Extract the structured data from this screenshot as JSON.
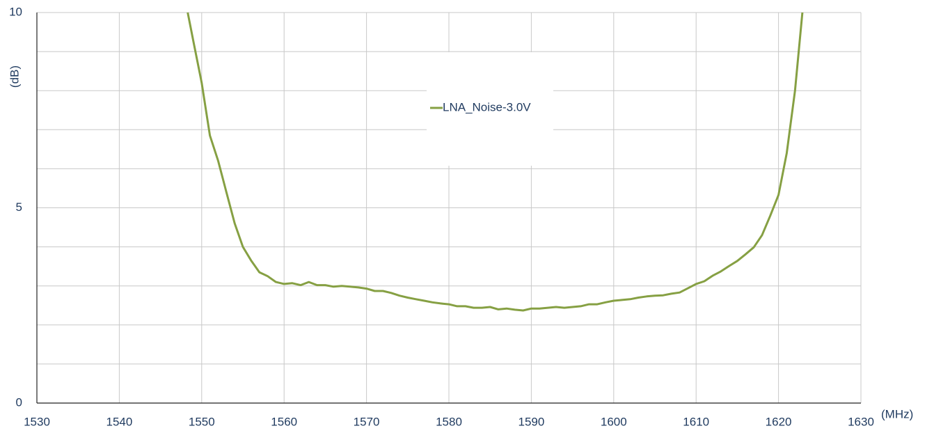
{
  "chart_data": {
    "type": "line",
    "x_label": "(MHz)",
    "y_label": "(dB)",
    "xlim": [
      1530,
      1630
    ],
    "xticks": [
      1530,
      1540,
      1550,
      1560,
      1570,
      1580,
      1590,
      1600,
      1610,
      1620,
      1630
    ],
    "ylim": [
      0,
      10
    ],
    "yticks": [
      0,
      5,
      10
    ],
    "ygrid": [
      0,
      1,
      2,
      3,
      4,
      5,
      6,
      7,
      8,
      9,
      10
    ],
    "grid": true,
    "legend": "top center",
    "x": [
      1548.3,
      1549,
      1550,
      1551,
      1552,
      1553,
      1554,
      1555,
      1556,
      1557,
      1558,
      1559,
      1560,
      1561,
      1562,
      1563,
      1564,
      1565,
      1566,
      1567,
      1568,
      1569,
      1570,
      1571,
      1572,
      1573,
      1574,
      1575,
      1576,
      1577,
      1578,
      1579,
      1580,
      1581,
      1582,
      1583,
      1584,
      1585,
      1586,
      1587,
      1588,
      1589,
      1590,
      1591,
      1592,
      1593,
      1594,
      1595,
      1596,
      1597,
      1598,
      1599,
      1600,
      1601,
      1602,
      1603,
      1604,
      1605,
      1606,
      1607,
      1608,
      1609,
      1610,
      1611,
      1612,
      1613,
      1614,
      1615,
      1616,
      1617,
      1618,
      1619,
      1620,
      1621,
      1622,
      1622.9
    ],
    "series": [
      {
        "name": "LNA_Noise-3.0V",
        "color": "#86a043",
        "values": [
          10,
          9.25,
          8.2,
          6.85,
          6.2,
          5.4,
          4.6,
          4.0,
          3.65,
          3.35,
          3.25,
          3.1,
          3.05,
          3.07,
          3.02,
          3.1,
          3.02,
          3.02,
          2.98,
          3.0,
          2.98,
          2.96,
          2.93,
          2.87,
          2.87,
          2.82,
          2.75,
          2.7,
          2.66,
          2.62,
          2.58,
          2.55,
          2.53,
          2.48,
          2.48,
          2.44,
          2.44,
          2.46,
          2.4,
          2.42,
          2.39,
          2.37,
          2.42,
          2.42,
          2.44,
          2.46,
          2.44,
          2.46,
          2.48,
          2.53,
          2.53,
          2.58,
          2.62,
          2.64,
          2.66,
          2.7,
          2.73,
          2.75,
          2.76,
          2.8,
          2.83,
          2.94,
          3.05,
          3.12,
          3.26,
          3.37,
          3.51,
          3.64,
          3.81,
          3.99,
          4.3,
          4.8,
          5.33,
          6.4,
          8.0,
          10
        ]
      }
    ]
  }
}
